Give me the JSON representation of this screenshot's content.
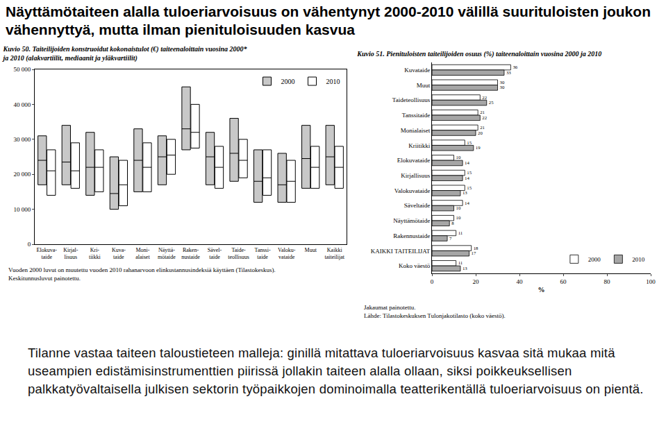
{
  "title": "Näyttämötaiteen alalla tuloeriarvoisuus on vähentynyt 2000-2010 välillä suurituloisten joukon vähennyttyä, mutta ilman pienituloisuuden kasvua",
  "text": "Tilanne vastaa taiteen taloustieteen malleja: ginillä mitattava tuloeriarvoisuus kasvaa sitä mukaa mitä useampien edistämisinstrumenttien piirissä jollakin taiteen alalla ollaan, siksi poikkeuksellisen palkkatyövaltaisella julkisen sektorin työpaikkojen dominoimalla teatterikentällä tuloeriarvoisuus on pientä.",
  "chart_data": [
    {
      "type": "box",
      "title": "Kuvio 50. Taiteilijoiden konstruoidut kokonaistulot (€) taiteenaloittain vuosina 2000*\nja 2010 (alakvartiilit, mediaanit ja yläkvartiilit)",
      "categories": [
        "Elokuva-\ntaide",
        "Kirjal-\nlisuus",
        "Kri-\ntiikki",
        "Kuva-\ntaide",
        "Moni-\nalaiset",
        "Näyttä-\nmötaide",
        "Raken-\nnustaide",
        "Sävel-\ntaide",
        "Taide-\nteollisuus",
        "Tanssi-\ntaide",
        "Valoku-\nvataide",
        "Muut",
        "Kaikki\ntaiteilijat"
      ],
      "series": [
        {
          "name": "2000",
          "color": "#c8c8c8",
          "q1": [
            17000,
            17000,
            14000,
            10000,
            15000,
            17000,
            27000,
            17000,
            18000,
            12000,
            12000,
            16000,
            17000
          ],
          "median": [
            24000,
            23500,
            22000,
            14500,
            24000,
            25000,
            33000,
            25000,
            26000,
            18000,
            17000,
            24500,
            25000
          ],
          "q3": [
            31000,
            34000,
            32000,
            25000,
            33000,
            31000,
            45000,
            32000,
            36000,
            27000,
            26000,
            34000,
            34000
          ]
        },
        {
          "name": "2010",
          "color": "#ffffff",
          "q1": [
            14000,
            16000,
            15000,
            11000,
            15000,
            20000,
            27500,
            16000,
            19000,
            14000,
            12000,
            16000,
            16000
          ],
          "median": [
            21000,
            21000,
            22000,
            17000,
            22000,
            25500,
            32000,
            22000,
            24000,
            19000,
            18000,
            22000,
            22000
          ],
          "q3": [
            27000,
            29000,
            27000,
            24000,
            29000,
            30000,
            40000,
            28000,
            30000,
            27000,
            24000,
            28000,
            28000
          ]
        }
      ],
      "ylim": [
        0,
        50000
      ],
      "yticks": [
        0,
        {
          "value": 10000,
          "label": "10 000"
        },
        {
          "value": 20000,
          "label": "20 000"
        },
        {
          "value": 30000,
          "label": "30 000"
        },
        {
          "value": 40000,
          "label": "40 000"
        },
        {
          "value": 50000,
          "label": "50 000"
        }
      ],
      "grid": false,
      "legend": "upper right",
      "annotations": [
        "Vuoden 2000 luvut on muutettu vuoden 2010 rahanarvoon elinkustannusindeksiä käyttäen (Tilastokeskus).",
        "Keskitunnusluvut painotettu."
      ]
    },
    {
      "type": "bar",
      "orientation": "horizontal",
      "title": "Kuvio 51. Pienituloisten taiteilijoiden osuus (%) taiteenaloittain vuosina 2000 ja 2010",
      "categories": [
        "Kuvataide",
        "Muut",
        "Taideteollisuus",
        "Tanssitaide",
        "Monialaiset",
        "Kriitikki",
        "Elokuvataide",
        "Kirjallisuus",
        "Valokuvataide",
        "Säveltaide",
        "Näyttämötaide",
        "Rakennustaide",
        "KAIKKI TAITEILIJAT",
        "Koko väestö"
      ],
      "series": [
        {
          "name": "2000",
          "color": "#ffffff",
          "values": [
            36,
            30,
            22,
            21,
            21,
            15,
            10,
            15,
            15,
            14,
            10,
            11,
            18,
            11
          ]
        },
        {
          "name": "2010",
          "color": "#a6a6a6",
          "values": [
            33,
            30,
            25,
            22,
            20,
            19,
            14,
            14,
            13,
            10,
            8,
            7,
            17,
            13
          ]
        }
      ],
      "xlim": [
        0,
        100
      ],
      "xticks": [
        0,
        20,
        40,
        60,
        80,
        100
      ],
      "xlabel": "%",
      "data_labels": true,
      "grid": false,
      "legend": "lower right",
      "annotations": [
        "Jakaumat painotettu.",
        "Lähde: Tilastokeskuksen Tulonjakotilasto (koko väestö)."
      ]
    }
  ]
}
